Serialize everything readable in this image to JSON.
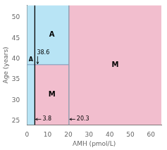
{
  "chart_data": {
    "type": "regions",
    "xlabel": "AMH (pmol/L)",
    "ylabel": "Age (years)",
    "xlim": [
      0,
      65
    ],
    "ylim": [
      24,
      53
    ],
    "xticks": [
      0,
      10,
      20,
      30,
      40,
      50,
      60
    ],
    "yticks": [
      25,
      30,
      35,
      40,
      45,
      50
    ],
    "grid": false,
    "regions": [
      {
        "label": "A",
        "color": "#b8e4f5",
        "x": [
          0,
          3.8
        ],
        "y": [
          24,
          53
        ]
      },
      {
        "label": "A",
        "color": "#b8e4f5",
        "x": [
          3.8,
          20.3
        ],
        "y": [
          38.6,
          53
        ]
      },
      {
        "label": "M",
        "color": "#f2bece",
        "x": [
          3.8,
          20.3
        ],
        "y": [
          24,
          38.6
        ]
      },
      {
        "label": "M",
        "color": "#f2bece",
        "x": [
          20.3,
          65
        ],
        "y": [
          24,
          53
        ]
      }
    ],
    "vlines": [
      {
        "x": 3.8,
        "color": "#000000",
        "label": "3.8"
      },
      {
        "x": 20.3,
        "color": "#8899aa",
        "label": "20.3"
      }
    ],
    "hlines": [
      {
        "y": 38.6,
        "x": [
          0,
          20.3
        ],
        "color": "#7799bb",
        "label": "38.6"
      }
    ]
  }
}
